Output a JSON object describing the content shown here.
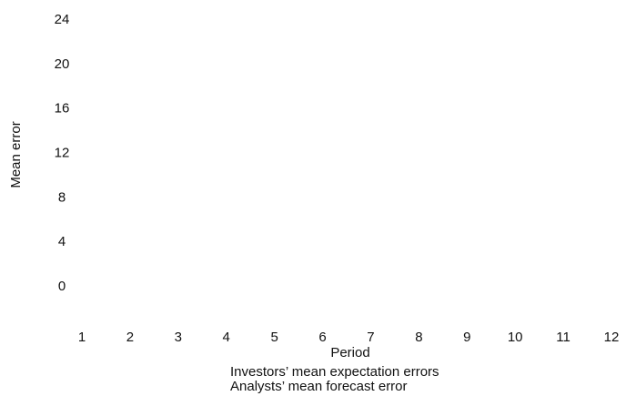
{
  "chart_data": {
    "type": "line",
    "xlabel": "Period",
    "ylabel": "Mean error",
    "x": [
      1,
      2,
      3,
      4,
      5,
      6,
      7,
      8,
      9,
      10,
      11,
      12
    ],
    "series": [
      {
        "name": "Investors’ mean expectation errors",
        "values": [
          null,
          null,
          null,
          null,
          null,
          null,
          null,
          null,
          null,
          null,
          null,
          null
        ]
      },
      {
        "name": "Analysts’ mean forecast error",
        "values": [
          null,
          null,
          null,
          null,
          null,
          null,
          null,
          null,
          null,
          null,
          null,
          null
        ]
      }
    ],
    "xlim": [
      1,
      12
    ],
    "xticks": [
      1,
      2,
      3,
      4,
      5,
      6,
      7,
      8,
      9,
      10,
      11,
      12
    ],
    "ylim": [
      0,
      24
    ],
    "yticks": [
      0,
      4,
      8,
      12,
      16,
      20,
      24
    ]
  }
}
